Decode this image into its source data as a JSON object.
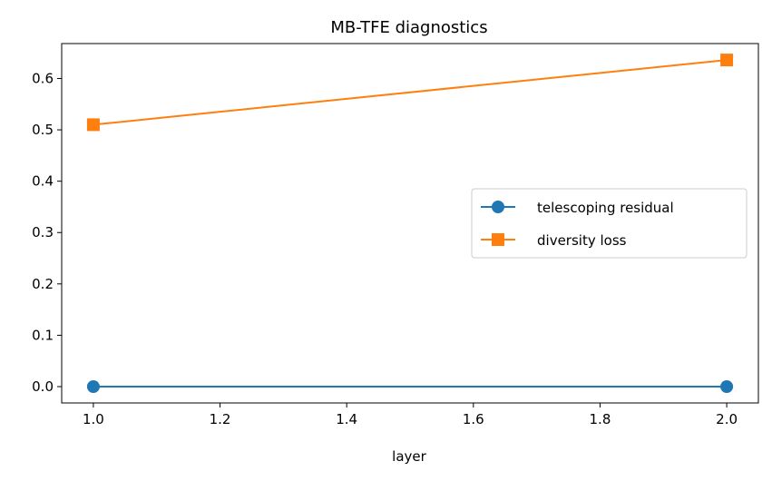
{
  "chart_data": {
    "type": "line",
    "title": "MB-TFE diagnostics",
    "xlabel": "layer",
    "ylabel": "",
    "xlim": [
      0.95,
      2.05
    ],
    "ylim": [
      -0.0318,
      0.668
    ],
    "xticks": [
      1.0,
      1.2,
      1.4,
      1.6,
      1.8,
      2.0
    ],
    "xtick_labels": [
      "1.0",
      "1.2",
      "1.4",
      "1.6",
      "1.8",
      "2.0"
    ],
    "yticks": [
      0.0,
      0.1,
      0.2,
      0.3,
      0.4,
      0.5,
      0.6
    ],
    "ytick_labels": [
      "0.0",
      "0.1",
      "0.2",
      "0.3",
      "0.4",
      "0.5",
      "0.6"
    ],
    "grid": false,
    "legend_position": "center-right",
    "series": [
      {
        "name": "telescoping residual",
        "x": [
          1,
          2
        ],
        "y": [
          0.0,
          0.0
        ],
        "color": "#1f77b4",
        "marker": "circle"
      },
      {
        "name": "diversity loss",
        "x": [
          1,
          2
        ],
        "y": [
          0.51,
          0.636
        ],
        "color": "#ff7f0e",
        "marker": "square"
      }
    ]
  }
}
